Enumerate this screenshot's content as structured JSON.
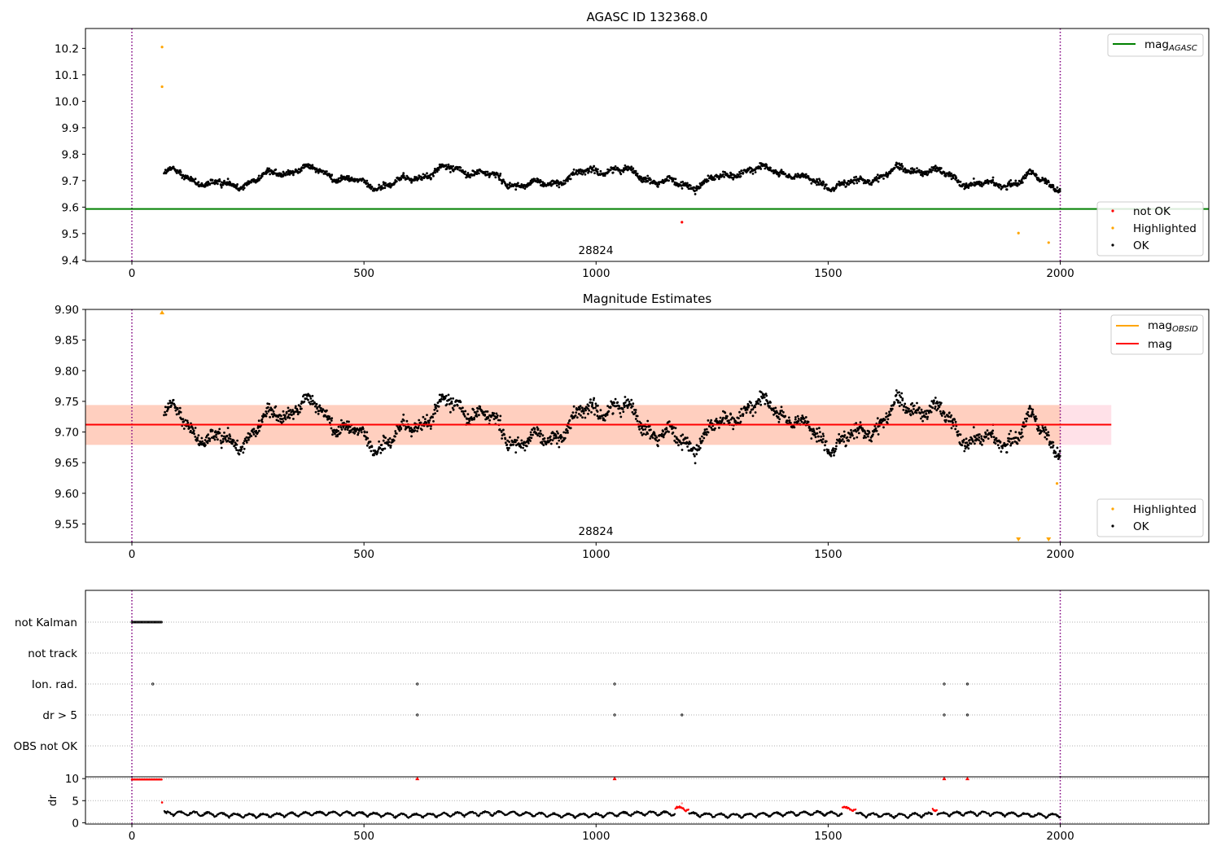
{
  "chart_data": [
    {
      "id": "p1",
      "type": "scatter",
      "title": "AGASC ID 132368.0",
      "xlim": [
        -100,
        2320
      ],
      "ylim": [
        9.395,
        10.275
      ],
      "xticks": [
        0,
        500,
        1000,
        1500,
        2000
      ],
      "yticks": [
        9.4,
        9.5,
        9.6,
        9.7,
        9.8,
        9.9,
        10.0,
        10.1,
        10.2
      ],
      "ytick_labels": [
        "9.4",
        "9.5",
        "9.6",
        "9.7",
        "9.8",
        "9.9",
        "10.0",
        "10.1",
        "10.2"
      ],
      "vlines": [
        0,
        2000
      ],
      "annotation": {
        "text": "28824",
        "x": 1000,
        "y": 9.42
      },
      "mag_agasc": 9.593,
      "legend_upper": {
        "position": "upper right",
        "entries": [
          {
            "label": "mag",
            "sub": "AGASC",
            "color": "#008000"
          }
        ]
      },
      "legend_lower": {
        "position": "lower right",
        "entries": [
          {
            "label": "not OK",
            "color": "#ff0000"
          },
          {
            "label": "Highlighted",
            "color": "#ffa500"
          },
          {
            "label": "OK",
            "color": "#000000"
          }
        ]
      },
      "highlighted_points": [
        [
          65,
          10.205
        ],
        [
          65,
          10.055
        ],
        [
          1910,
          9.502
        ],
        [
          1975,
          9.466
        ]
      ],
      "not_ok_points": [
        [
          1185,
          9.543
        ]
      ]
    },
    {
      "id": "p2",
      "type": "scatter",
      "title": "Magnitude Estimates",
      "xlim": [
        -100,
        2320
      ],
      "ylim": [
        9.52,
        9.9
      ],
      "xticks": [
        0,
        500,
        1000,
        1500,
        2000
      ],
      "yticks": [
        9.55,
        9.6,
        9.65,
        9.7,
        9.75,
        9.8,
        9.85,
        9.9
      ],
      "ytick_labels": [
        "9.55",
        "9.60",
        "9.65",
        "9.70",
        "9.75",
        "9.80",
        "9.85",
        "9.90"
      ],
      "vlines": [
        0,
        2000
      ],
      "annotation": {
        "text": "28824",
        "x": 1000,
        "y": 9.531
      },
      "mag": 9.712,
      "mag_span": [
        -100,
        2110
      ],
      "band_pink": [
        9.679,
        9.744
      ],
      "band_orange": [
        9.679,
        9.744
      ],
      "mag_obsid": {
        "x": [
          -100,
          2000
        ],
        "y": 9.712
      },
      "legend_upper": {
        "position": "upper right",
        "entries": [
          {
            "label": "mag",
            "sub": "OBSID",
            "color": "#ffa500"
          },
          {
            "label": "mag",
            "sub": "",
            "color": "#ff0000"
          }
        ]
      },
      "legend_lower": {
        "position": "lower right",
        "entries": [
          {
            "label": "Highlighted",
            "color": "#ffa500"
          },
          {
            "label": "OK",
            "color": "#000000"
          }
        ]
      },
      "highlighted_points": [
        [
          1993,
          9.616
        ]
      ],
      "clipped_markers": [
        [
          65,
          "top"
        ],
        [
          1910,
          "bottom"
        ],
        [
          1975,
          "bottom"
        ]
      ]
    },
    {
      "id": "p3",
      "type": "scatter",
      "title": "",
      "xlim": [
        -100,
        2320
      ],
      "ylabel_rows": [
        "not Kalman",
        "not track",
        "Ion. rad.",
        "dr > 5",
        "OBS not OK"
      ],
      "vlines": [
        0,
        2000
      ],
      "flags": {
        "not Kalman": {
          "x_range": [
            0,
            65
          ]
        },
        "not track": {
          "x": []
        },
        "Ion. rad.": {
          "x": [
            45,
            615,
            1040,
            1750,
            1800
          ]
        },
        "dr > 5": {
          "x": [
            615,
            1040,
            1185,
            1750,
            1800
          ]
        },
        "OBS not OK": {
          "x": []
        }
      }
    },
    {
      "id": "p4",
      "type": "scatter",
      "title": "",
      "ylabel": "dr",
      "xlim": [
        -100,
        2320
      ],
      "ylim": [
        -0.3,
        10.4
      ],
      "xticks": [
        0,
        500,
        1000,
        1500,
        2000
      ],
      "yticks": [
        0,
        5,
        10
      ],
      "vlines": [
        0,
        2000
      ],
      "clipped_red_x": [
        615,
        1040,
        1750,
        1800
      ],
      "red_segments": [
        [
          1170,
          1200
        ],
        [
          1530,
          1560
        ],
        [
          1725,
          1735
        ]
      ]
    }
  ]
}
